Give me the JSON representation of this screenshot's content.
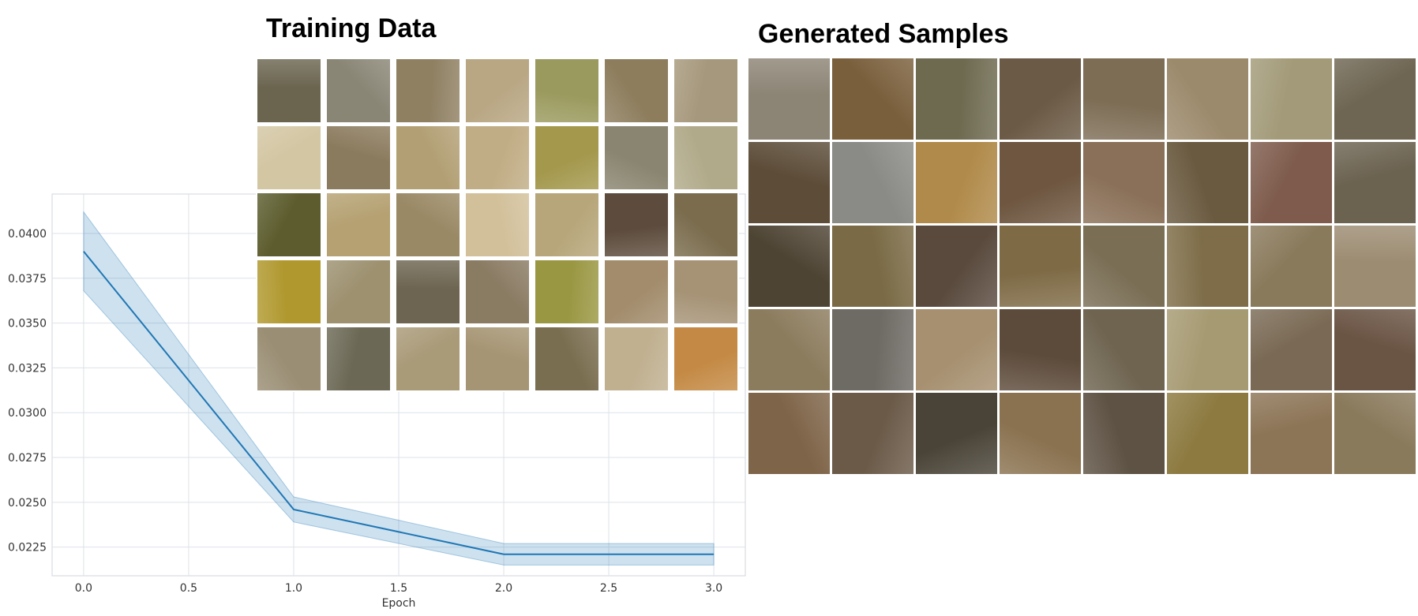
{
  "figure": {
    "training_title": "Training Data",
    "generated_title": "Generated Samples"
  },
  "chart_data": {
    "type": "line",
    "xlabel": "Epoch",
    "ylabel": "",
    "title": "",
    "x": [
      0,
      1,
      2,
      3
    ],
    "series": [
      {
        "values": [
          0.039,
          0.0246,
          0.0221,
          0.0221
        ],
        "lower": [
          0.0368,
          0.0239,
          0.0215,
          0.0215
        ],
        "upper": [
          0.0412,
          0.0253,
          0.0227,
          0.0227
        ],
        "color": "#1f77b4",
        "band_color": "#1f77b4"
      }
    ],
    "xlim": [
      -0.15,
      3.15
    ],
    "ylim": [
      0.0209,
      0.0422
    ],
    "xticks": [
      0.0,
      0.5,
      1.0,
      1.5,
      2.0,
      2.5,
      3.0
    ],
    "xtick_labels": [
      "0.0",
      "0.5",
      "1.0",
      "1.5",
      "2.0",
      "2.5",
      "3.0"
    ],
    "yticks": [
      0.0225,
      0.025,
      0.0275,
      0.03,
      0.0325,
      0.035,
      0.0375,
      0.04
    ],
    "ytick_labels": [
      "0.0225",
      "0.0250",
      "0.0275",
      "0.0300",
      "0.0325",
      "0.0350",
      "0.0375",
      "0.0400"
    ],
    "grid": true,
    "legend": "none"
  },
  "training_images": {
    "rows": 5,
    "cols": 7,
    "colors": [
      "#6b6550",
      "#8a8676",
      "#8f8062",
      "#b9a784",
      "#9a9a5e",
      "#8d7d5d",
      "#a6987c",
      "#d3c6a3",
      "#8b7b5e",
      "#b29f74",
      "#c1ad85",
      "#a4984d",
      "#8a8570",
      "#b1aa8a",
      "#5c5c2e",
      "#b5a172",
      "#9a8965",
      "#d2c09a",
      "#b7a67a",
      "#5d4c3d",
      "#7a6c4d",
      "#b0982e",
      "#9d9170",
      "#6d6551",
      "#8a7b63",
      "#9a9743",
      "#a28c6c",
      "#a69376",
      "#9a8e74",
      "#6b6855",
      "#a99a78",
      "#a69574",
      "#7a6e50",
      "#c0b090",
      "#c48a45"
    ]
  },
  "generated_images": {
    "rows": 5,
    "cols": 8,
    "colors": [
      "#8c8475",
      "#7a5f3c",
      "#6e6a50",
      "#6b5a45",
      "#7d6d55",
      "#9c8a6c",
      "#a29a78",
      "#6e6552",
      "#5c4c38",
      "#8a8a86",
      "#b08a4a",
      "#6e5640",
      "#8a7058",
      "#6a5a40",
      "#7e5b4c",
      "#6b6250",
      "#4e4434",
      "#7a6a45",
      "#5a4a3e",
      "#7e6a45",
      "#7a6e55",
      "#7e6d48",
      "#8a7a5c",
      "#9c8c72",
      "#8c7c5e",
      "#6e6a64",
      "#a69070",
      "#5c4a3a",
      "#6e6450",
      "#a69a72",
      "#7a6a55",
      "#6a5444",
      "#7e6448",
      "#6b5a48",
      "#4a4438",
      "#8a7250",
      "#5e5244",
      "#8c7a40",
      "#8c7456",
      "#8a7a5c"
    ]
  }
}
